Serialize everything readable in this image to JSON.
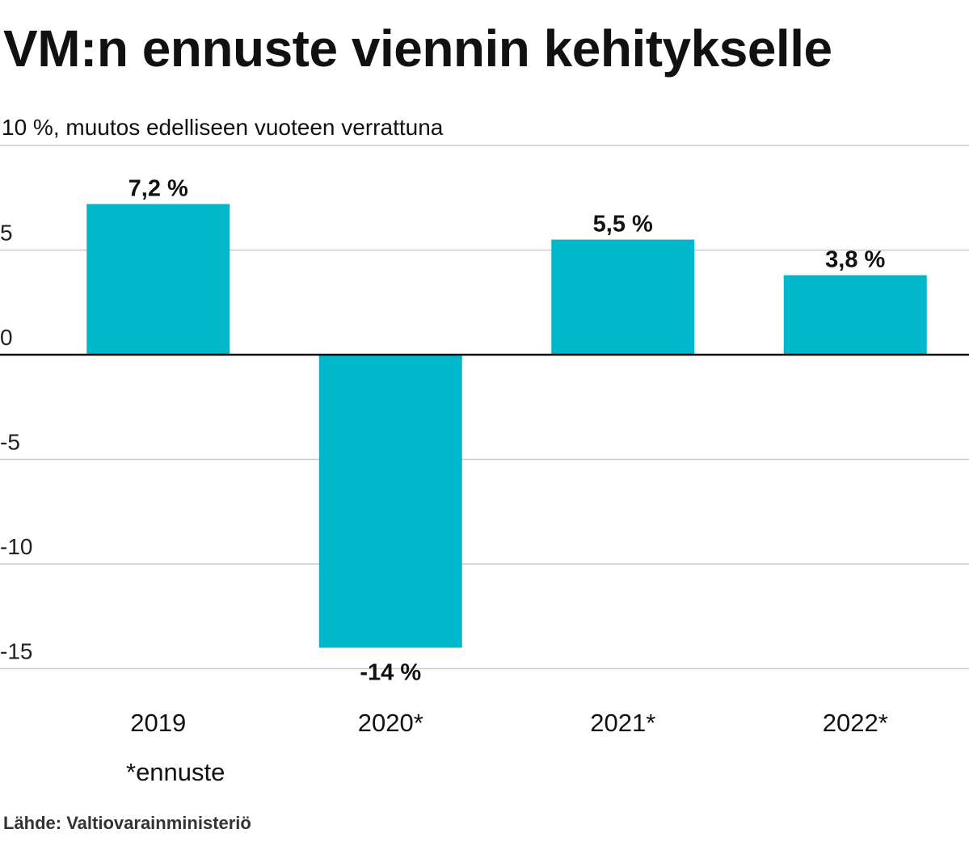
{
  "chart_data": {
    "type": "bar",
    "title": "VM:n ennuste viennin kehitykselle",
    "subtitle": "10 %, muutos edelliseen vuoteen verrattuna",
    "categories": [
      "2019",
      "2020*",
      "2021*",
      "2022*"
    ],
    "values": [
      7.2,
      -14,
      5.5,
      3.8
    ],
    "value_labels": [
      "7,2 %",
      "-14 %",
      "5,5 %",
      "3,8 %"
    ],
    "yticks": [
      5,
      0,
      -5,
      -10,
      -15
    ],
    "ytick_labels": [
      "5",
      "0",
      "-5",
      "-10",
      "-15"
    ],
    "ylim": [
      -16,
      10
    ],
    "grid": true,
    "bar_color": "#00b7cc",
    "footnote": "*ennuste",
    "source": "Lähde: Valtiovarainministeriö"
  }
}
